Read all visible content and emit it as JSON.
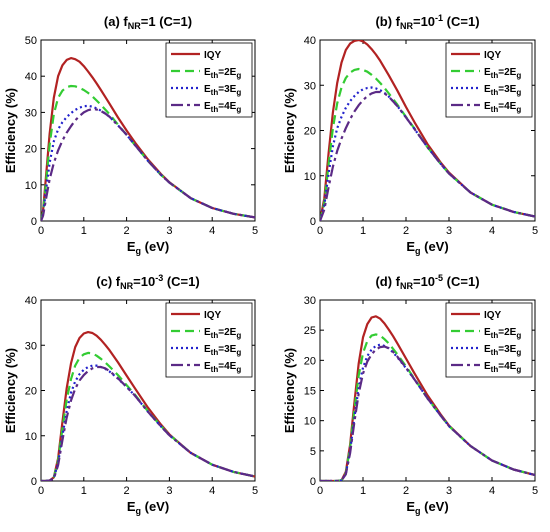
{
  "chart_data": [
    {
      "type": "line",
      "title": "(a) f_NR=1 (C=1)",
      "title_parts": {
        "prefix": "(a) f",
        "sub": "NR",
        "mid": "=1",
        "sup": "",
        "suffix": " (C=1)"
      },
      "xlabel": "E_g (eV)",
      "ylabel": "Efficiency (%)",
      "xlim": [
        0,
        5
      ],
      "ylim": [
        0,
        50
      ],
      "xticks": [
        "0",
        "1",
        "2",
        "3",
        "4",
        "5"
      ],
      "yticks": [
        "0",
        "10",
        "20",
        "30",
        "40",
        "50"
      ],
      "legend_position": "top-right",
      "x": [
        0,
        0.05,
        0.1,
        0.2,
        0.3,
        0.4,
        0.5,
        0.6,
        0.7,
        0.8,
        0.9,
        1.0,
        1.1,
        1.2,
        1.3,
        1.4,
        1.5,
        1.6,
        1.8,
        2.0,
        2.2,
        2.5,
        2.8,
        3.0,
        3.5,
        4.0,
        4.5,
        5.0
      ],
      "series": [
        {
          "legend": {
            "main": "IQY",
            "sub": "",
            "rest": ""
          },
          "color": "#b22222",
          "dash": "",
          "width": 2.2,
          "values": [
            0,
            3,
            10,
            24,
            34,
            40,
            43,
            44.5,
            45,
            44.7,
            44,
            42.8,
            41.3,
            39.7,
            38,
            36.2,
            34.3,
            32.4,
            28.6,
            25,
            21.6,
            17,
            13,
            10.7,
            6.3,
            3.6,
            2,
            1
          ]
        },
        {
          "legend": {
            "main": "E",
            "sub": "th",
            "rest": "=2E",
            "sub2": "g"
          },
          "color": "#33cc33",
          "dash": "9,5",
          "width": 2.2,
          "values": [
            0,
            2.5,
            8.5,
            21,
            29.5,
            34,
            36,
            37,
            37.3,
            37.2,
            36.8,
            36.2,
            35.4,
            34.4,
            33.3,
            32.1,
            30.8,
            29.5,
            26.6,
            23.8,
            20.9,
            16.6,
            12.8,
            10.6,
            6.3,
            3.6,
            2,
            1
          ]
        },
        {
          "legend": {
            "main": "E",
            "sub": "th",
            "rest": "=3E",
            "sub2": "g"
          },
          "color": "#2222cc",
          "dash": "2,3",
          "width": 2.2,
          "values": [
            0,
            2,
            7,
            16,
            22,
            25.3,
            27.3,
            28.7,
            29.8,
            30.7,
            31.3,
            31.7,
            31.8,
            31.6,
            31.1,
            30.5,
            29.7,
            28.8,
            26.4,
            23.8,
            20.9,
            16.6,
            12.8,
            10.6,
            6.3,
            3.6,
            2,
            1
          ]
        },
        {
          "legend": {
            "main": "E",
            "sub": "th",
            "rest": "=4E",
            "sub2": "g"
          },
          "color": "#5b2a86",
          "dash": "12,4,3,4",
          "width": 2.2,
          "values": [
            0,
            1.5,
            5,
            11.5,
            16,
            19.5,
            22.2,
            24.4,
            26.2,
            27.8,
            29,
            30,
            30.6,
            30.9,
            30.8,
            30.4,
            29.7,
            28.8,
            26.4,
            23.8,
            20.9,
            16.6,
            12.8,
            10.6,
            6.3,
            3.6,
            2,
            1
          ]
        }
      ]
    },
    {
      "type": "line",
      "title": "(b) f_NR=10^-1 (C=1)",
      "title_parts": {
        "prefix": "(b) f",
        "sub": "NR",
        "mid": "=10",
        "sup": "-1",
        "suffix": " (C=1)"
      },
      "xlabel": "E_g (eV)",
      "ylabel": "Efficiency (%)",
      "xlim": [
        0,
        5
      ],
      "ylim": [
        0,
        40
      ],
      "xticks": [
        "0",
        "1",
        "2",
        "3",
        "4",
        "5"
      ],
      "yticks": [
        "0",
        "10",
        "20",
        "30",
        "40"
      ],
      "legend_position": "top-right",
      "x": [
        0,
        0.1,
        0.2,
        0.3,
        0.4,
        0.5,
        0.6,
        0.7,
        0.8,
        0.9,
        1.0,
        1.1,
        1.2,
        1.3,
        1.4,
        1.5,
        1.6,
        1.8,
        2.0,
        2.2,
        2.5,
        2.8,
        3.0,
        3.5,
        4.0,
        4.5,
        5.0
      ],
      "series": [
        {
          "legend": {
            "main": "IQY",
            "sub": "",
            "rest": ""
          },
          "color": "#b22222",
          "dash": "",
          "width": 2.2,
          "values": [
            0,
            5,
            15,
            24,
            30.5,
            35,
            37.8,
            39.2,
            39.8,
            40,
            39.7,
            39,
            38,
            36.8,
            35.4,
            33.8,
            32.2,
            28.8,
            25.2,
            21.8,
            17,
            13,
            10.7,
            6.3,
            3.6,
            2,
            1
          ]
        },
        {
          "legend": {
            "main": "E",
            "sub": "th",
            "rest": "=2E",
            "sub2": "g"
          },
          "color": "#33cc33",
          "dash": "9,5",
          "width": 2.2,
          "values": [
            0,
            4,
            12.5,
            20.5,
            26,
            29.5,
            31.6,
            32.8,
            33.4,
            33.6,
            33.4,
            33,
            32.3,
            31.5,
            30.5,
            29.4,
            28.2,
            25.7,
            23,
            20.4,
            16.3,
            12.7,
            10.5,
            6.3,
            3.6,
            2,
            1
          ]
        },
        {
          "legend": {
            "main": "E",
            "sub": "th",
            "rest": "=3E",
            "sub2": "g"
          },
          "color": "#2222cc",
          "dash": "2,3",
          "width": 2.2,
          "values": [
            0,
            3.5,
            10.5,
            16.5,
            20.5,
            23,
            25,
            26.5,
            27.6,
            28.5,
            29.1,
            29.4,
            29.5,
            29.3,
            28.9,
            28.3,
            27.5,
            25.4,
            22.9,
            20.3,
            16.3,
            12.7,
            10.5,
            6.3,
            3.6,
            2,
            1
          ]
        },
        {
          "legend": {
            "main": "E",
            "sub": "th",
            "rest": "=4E",
            "sub2": "g"
          },
          "color": "#5b2a86",
          "dash": "12,4,3,4",
          "width": 2.2,
          "values": [
            0,
            2.5,
            7.5,
            12,
            15.5,
            18.2,
            20.5,
            22.5,
            24.2,
            25.6,
            26.7,
            27.6,
            28.2,
            28.5,
            28.5,
            28.2,
            27.5,
            25.4,
            22.9,
            20.3,
            16.3,
            12.7,
            10.5,
            6.3,
            3.6,
            2,
            1
          ]
        }
      ]
    },
    {
      "type": "line",
      "title": "(c) f_NR=10^-3 (C=1)",
      "title_parts": {
        "prefix": "(c) f",
        "sub": "NR",
        "mid": "=10",
        "sup": "-3",
        "suffix": " (C=1)"
      },
      "xlabel": "E_g (eV)",
      "ylabel": "Efficiency (%)",
      "xlim": [
        0,
        5
      ],
      "ylim": [
        0,
        40
      ],
      "xticks": [
        "0",
        "1",
        "2",
        "3",
        "4",
        "5"
      ],
      "yticks": [
        "0",
        "10",
        "20",
        "30",
        "40"
      ],
      "legend_position": "top-right",
      "x": [
        0,
        0.1,
        0.2,
        0.3,
        0.4,
        0.5,
        0.6,
        0.7,
        0.8,
        0.9,
        1.0,
        1.1,
        1.2,
        1.3,
        1.4,
        1.5,
        1.6,
        1.8,
        2.0,
        2.2,
        2.5,
        2.8,
        3.0,
        3.5,
        4.0,
        4.5,
        5.0
      ],
      "series": [
        {
          "legend": {
            "main": "IQY",
            "sub": "",
            "rest": ""
          },
          "color": "#b22222",
          "dash": "",
          "width": 2.2,
          "values": [
            0,
            0,
            0.1,
            0.8,
            5,
            13,
            20.5,
            26,
            29.6,
            31.6,
            32.6,
            32.9,
            32.7,
            32.1,
            31.2,
            30.1,
            28.9,
            26.2,
            23.3,
            20.4,
            16.2,
            12.5,
            10.3,
            6.2,
            3.6,
            2,
            1
          ]
        },
        {
          "legend": {
            "main": "E",
            "sub": "th",
            "rest": "=2E",
            "sub2": "g"
          },
          "color": "#33cc33",
          "dash": "9,5",
          "width": 2.2,
          "values": [
            0,
            0,
            0.1,
            0.7,
            4.5,
            11.5,
            18,
            22.5,
            25.5,
            27.2,
            28,
            28.3,
            28.2,
            27.7,
            27,
            26.2,
            25.3,
            23.4,
            21.2,
            19,
            15.4,
            12.2,
            10.2,
            6.2,
            3.6,
            2,
            1
          ]
        },
        {
          "legend": {
            "main": "E",
            "sub": "th",
            "rest": "=3E",
            "sub2": "g"
          },
          "color": "#2222cc",
          "dash": "2,3",
          "width": 2.2,
          "values": [
            0,
            0,
            0.1,
            0.6,
            4,
            10,
            15.5,
            19.5,
            22,
            23.6,
            24.6,
            25.2,
            25.5,
            25.5,
            25.2,
            24.8,
            24.2,
            22.6,
            20.8,
            18.8,
            15.3,
            12.1,
            10.1,
            6.2,
            3.6,
            2,
            1
          ]
        },
        {
          "legend": {
            "main": "E",
            "sub": "th",
            "rest": "=4E",
            "sub2": "g"
          },
          "color": "#5b2a86",
          "dash": "12,4,3,4",
          "width": 2.2,
          "values": [
            0,
            0,
            0.1,
            0.5,
            3.5,
            9,
            14,
            17.8,
            20.4,
            22.2,
            23.4,
            24.3,
            24.9,
            25.2,
            25.2,
            24.9,
            24.3,
            22.7,
            20.8,
            18.8,
            15.3,
            12.1,
            10.1,
            6.2,
            3.6,
            2,
            1
          ]
        }
      ]
    },
    {
      "type": "line",
      "title": "(d) f_NR=10^-5 (C=1)",
      "title_parts": {
        "prefix": "(d) f",
        "sub": "NR",
        "mid": "=10",
        "sup": "-5",
        "suffix": " (C=1)"
      },
      "xlabel": "E_g (eV)",
      "ylabel": "Efficiency (%)",
      "xlim": [
        0,
        5
      ],
      "ylim": [
        0,
        30
      ],
      "xticks": [
        "0",
        "1",
        "2",
        "3",
        "4",
        "5"
      ],
      "yticks": [
        "0",
        "5",
        "10",
        "15",
        "20",
        "25",
        "30"
      ],
      "legend_position": "top-right",
      "x": [
        0,
        0.2,
        0.4,
        0.5,
        0.6,
        0.7,
        0.8,
        0.9,
        1.0,
        1.1,
        1.2,
        1.3,
        1.4,
        1.5,
        1.6,
        1.7,
        1.8,
        2.0,
        2.2,
        2.5,
        2.8,
        3.0,
        3.5,
        4.0,
        4.5,
        5.0
      ],
      "series": [
        {
          "legend": {
            "main": "IQY",
            "sub": "",
            "rest": ""
          },
          "color": "#b22222",
          "dash": "",
          "width": 2.2,
          "values": [
            0,
            0,
            0,
            0.1,
            1.5,
            6,
            13,
            19.5,
            23.8,
            26,
            27.1,
            27.3,
            26.9,
            26.1,
            25.1,
            24,
            22.8,
            20.3,
            17.8,
            14.2,
            11.1,
            9.2,
            5.8,
            3.4,
            1.9,
            1
          ]
        },
        {
          "legend": {
            "main": "E",
            "sub": "th",
            "rest": "=2E",
            "sub2": "g"
          },
          "color": "#33cc33",
          "dash": "9,5",
          "width": 2.2,
          "values": [
            0,
            0,
            0,
            0.1,
            1.3,
            5.5,
            11.8,
            17.5,
            21.2,
            23.2,
            24.1,
            24.3,
            24.1,
            23.5,
            22.8,
            21.9,
            21,
            19,
            16.9,
            13.7,
            10.9,
            9.1,
            5.8,
            3.4,
            1.9,
            1
          ]
        },
        {
          "legend": {
            "main": "E",
            "sub": "th",
            "rest": "=3E",
            "sub2": "g"
          },
          "color": "#2222cc",
          "dash": "2,3",
          "width": 2.2,
          "values": [
            0,
            0,
            0,
            0.1,
            1.2,
            5,
            10.5,
            15.5,
            18.8,
            20.7,
            21.8,
            22.4,
            22.6,
            22.4,
            22,
            21.3,
            20.5,
            18.7,
            16.8,
            13.7,
            10.9,
            9.1,
            5.8,
            3.4,
            1.9,
            1
          ]
        },
        {
          "legend": {
            "main": "E",
            "sub": "th",
            "rest": "=4E",
            "sub2": "g"
          },
          "color": "#5b2a86",
          "dash": "12,4,3,4",
          "width": 2.2,
          "values": [
            0,
            0,
            0,
            0.1,
            1.1,
            4.6,
            9.8,
            14.5,
            17.8,
            19.8,
            21,
            21.8,
            22.2,
            22.3,
            22,
            21.4,
            20.6,
            18.8,
            16.8,
            13.7,
            10.9,
            9.1,
            5.8,
            3.4,
            1.9,
            1
          ]
        }
      ]
    }
  ]
}
